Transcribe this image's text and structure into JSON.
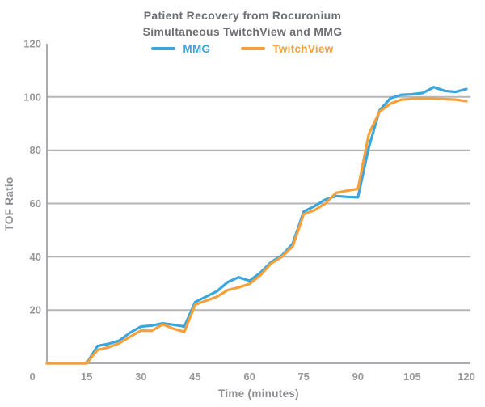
{
  "title": {
    "line1": "Patient Recovery from Rocuronium",
    "line2": "Simultaneous TwitchView and MMG"
  },
  "colors": {
    "mmg": "#3aa6dd",
    "twitchview": "#f5a03c",
    "grid": "#b4b6b8",
    "axis": "#a9abae",
    "title_text": "#6d6f72",
    "tick_text": "#97999b",
    "axis_title_text": "#8c8e91",
    "background": "#ffffff"
  },
  "chart_data": {
    "type": "line",
    "title": "Patient Recovery from Rocuronium Simultaneous TwitchView and MMG",
    "xlabel": "Time (minutes)",
    "ylabel": "TOF Ratio",
    "xlim": [
      4,
      120
    ],
    "ylim": [
      0,
      120
    ],
    "x_ticks": [
      0,
      15,
      30,
      45,
      60,
      75,
      90,
      105,
      120
    ],
    "y_ticks": [
      20,
      40,
      60,
      80,
      100,
      120
    ],
    "grid_values": [
      20,
      40,
      60,
      80,
      100
    ],
    "grid": "horizontal-only",
    "legend_position": "top-center",
    "x": [
      4,
      6,
      9,
      12,
      15,
      18,
      21,
      24,
      27,
      30,
      33,
      36,
      39,
      42,
      45,
      48,
      51,
      54,
      57,
      60,
      63,
      66,
      69,
      72,
      75,
      78,
      81,
      84,
      87,
      90,
      93,
      96,
      99,
      102,
      105,
      108,
      111,
      114,
      117,
      120
    ],
    "series": [
      {
        "name": "MMG",
        "color": "#3aa6dd",
        "values": [
          0,
          0,
          0,
          0,
          0,
          6.5,
          7.3,
          8.5,
          11.5,
          13.8,
          14.2,
          15,
          14.5,
          13.8,
          23,
          25,
          27,
          30.5,
          32.3,
          31,
          34,
          38,
          40.5,
          45,
          57,
          59,
          61.5,
          62.8,
          62.5,
          62.3,
          81,
          95,
          99.5,
          100.8,
          101,
          101.5,
          103.7,
          102.3,
          101.9,
          103
        ]
      },
      {
        "name": "TwitchView",
        "color": "#f5a03c",
        "values": [
          0,
          0,
          0,
          0,
          0,
          5,
          6,
          7.5,
          10,
          12.3,
          12.2,
          14.6,
          13,
          11.8,
          22,
          23.5,
          25,
          27.5,
          28.5,
          29.8,
          33,
          37.5,
          40,
          44,
          56,
          57.5,
          60,
          64,
          64.8,
          65.5,
          86,
          94.5,
          97.5,
          99,
          99.3,
          99.3,
          99.3,
          99.2,
          99,
          98.4
        ]
      }
    ]
  }
}
